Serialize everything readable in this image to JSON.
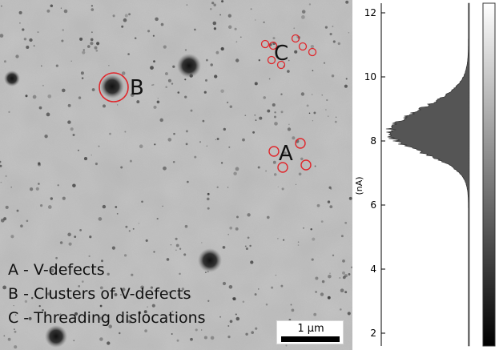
{
  "legend": {
    "a": "A - V-defects",
    "b": "B - Clusters of V-defects",
    "c": "C - Threading dislocations"
  },
  "markers": {
    "a": "A",
    "b": "B",
    "c": "C"
  },
  "scalebar": {
    "label": "1 µm"
  },
  "histogram": {
    "unit_label": "(nA)",
    "ticks": [
      "2",
      "4",
      "6",
      "8",
      "10",
      "12"
    ],
    "range": [
      1.6,
      12.3
    ],
    "peak_center": 8.25
  },
  "colors": {
    "marker_red": "#e0262b",
    "histogram_fill": "#555555",
    "background_grey": "#b5b5b5"
  }
}
